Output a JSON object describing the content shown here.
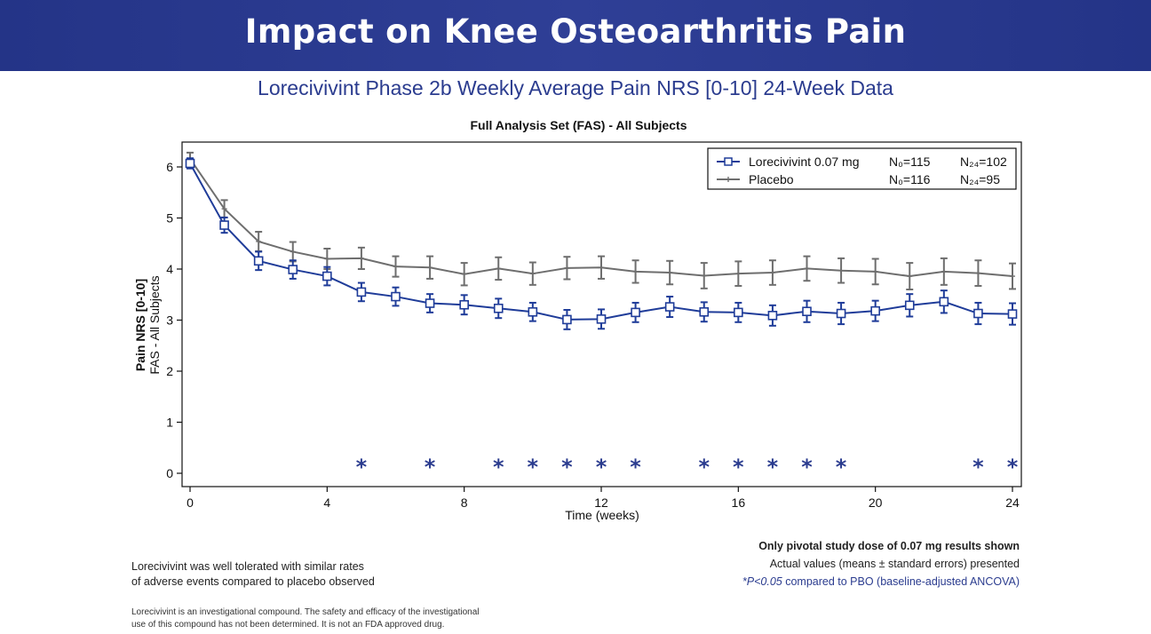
{
  "banner": {
    "title": "Impact on Knee Osteoarthritis Pain"
  },
  "subtitle": "Lorecivivint Phase 2b Weekly Average Pain NRS [0-10] 24-Week Data",
  "colors": {
    "banner": "#2a3a8f",
    "lorecivivint": "#1f3c99",
    "placebo": "#6e6e6e",
    "star": "#2b3c8f"
  },
  "chart_data": {
    "type": "line",
    "title": "Full Analysis Set (FAS) - All Subjects",
    "xlabel": "Time (weeks)",
    "ylabel_line1": "Pain NRS [0-10]",
    "ylabel_line2": "FAS - All Subjects",
    "xlim": [
      0,
      24
    ],
    "ylim": [
      0,
      6.5
    ],
    "xticks": [
      0,
      4,
      8,
      12,
      16,
      20,
      24
    ],
    "yticks": [
      0,
      1,
      2,
      3,
      4,
      5,
      6
    ],
    "x": [
      0,
      1,
      2,
      3,
      4,
      5,
      6,
      7,
      8,
      9,
      10,
      11,
      12,
      13,
      14,
      15,
      16,
      17,
      18,
      19,
      20,
      21,
      22,
      23,
      24
    ],
    "series": [
      {
        "name": "Lorecivivint 0.07 mg",
        "n0": "N₀=115",
        "n24": "N₂₄=102",
        "marker": "square",
        "color": "#1f3c99",
        "values": [
          6.07,
          4.86,
          4.16,
          3.99,
          3.86,
          3.55,
          3.46,
          3.33,
          3.3,
          3.23,
          3.16,
          3.01,
          3.02,
          3.15,
          3.26,
          3.16,
          3.15,
          3.09,
          3.17,
          3.13,
          3.18,
          3.29,
          3.36,
          3.13,
          3.12
        ],
        "errors": [
          0.1,
          0.15,
          0.18,
          0.18,
          0.18,
          0.18,
          0.18,
          0.18,
          0.19,
          0.19,
          0.18,
          0.19,
          0.19,
          0.19,
          0.2,
          0.19,
          0.19,
          0.2,
          0.21,
          0.21,
          0.2,
          0.22,
          0.22,
          0.21,
          0.21
        ]
      },
      {
        "name": "Placebo",
        "n0": "N₀=116",
        "n24": "N₂₄=95",
        "marker": "plus",
        "color": "#6e6e6e",
        "values": [
          6.16,
          5.18,
          4.54,
          4.34,
          4.2,
          4.21,
          4.05,
          4.03,
          3.9,
          4.01,
          3.91,
          4.02,
          4.03,
          3.95,
          3.93,
          3.87,
          3.91,
          3.93,
          4.01,
          3.97,
          3.95,
          3.86,
          3.95,
          3.92,
          3.86
        ],
        "errors": [
          0.12,
          0.17,
          0.19,
          0.19,
          0.2,
          0.21,
          0.2,
          0.22,
          0.22,
          0.22,
          0.22,
          0.22,
          0.22,
          0.22,
          0.23,
          0.25,
          0.24,
          0.24,
          0.24,
          0.24,
          0.25,
          0.26,
          0.26,
          0.25,
          0.25
        ]
      }
    ],
    "significance_weeks": [
      5,
      7,
      9,
      10,
      11,
      12,
      13,
      15,
      16,
      17,
      18,
      19,
      23,
      24
    ],
    "significance_symbol": "*",
    "legend_position": "top-right",
    "grid": false
  },
  "notes": {
    "pivotal": "Only pivotal study dose of 0.07 mg results shown",
    "actual_values": "Actual values (means ± standard errors) presented",
    "pvalue_italic": "*P<0.05",
    "pvalue_rest": " compared to PBO (baseline-adjusted ANCOVA)",
    "safety_line1": "Lorecivivint was well tolerated with similar rates",
    "safety_line2": "of adverse events compared to placebo observed",
    "disclaimer_line1": "Lorecivivint is an investigational compound. The safety and efficacy of the investigational",
    "disclaimer_line2": "use of this compound has not been determined. It is not an FDA approved drug."
  }
}
